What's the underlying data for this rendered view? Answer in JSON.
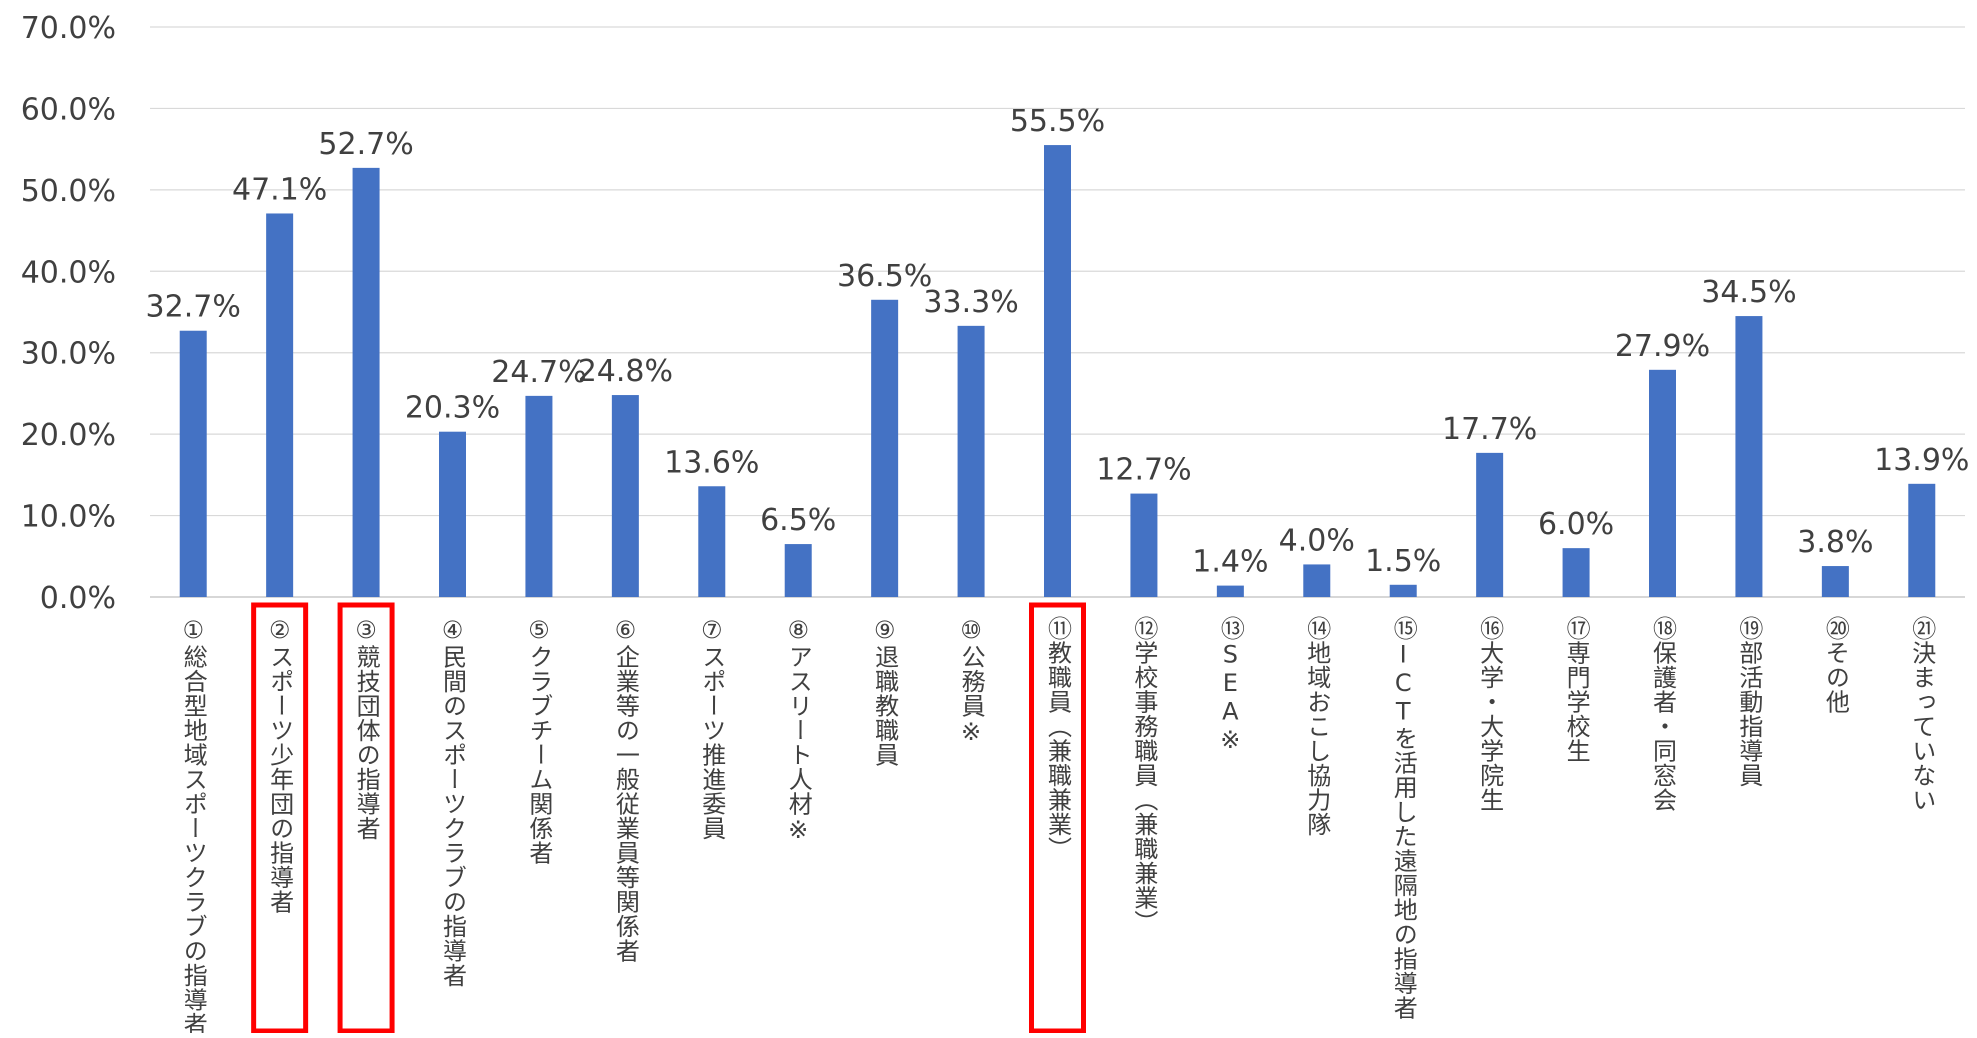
{
  "chart_data": {
    "type": "bar",
    "title": "",
    "xlabel": "",
    "ylabel": "",
    "ylim": [
      0,
      70
    ],
    "yticks": [
      "0.0%",
      "10.0%",
      "20.0%",
      "30.0%",
      "40.0%",
      "50.0%",
      "60.0%",
      "70.0%"
    ],
    "grid": true,
    "legend": "none",
    "bar_color": "#4472C4",
    "highlight_color": "#FF0000",
    "categories": [
      "①総合型地域スポーツクラブの指導者",
      "②スポーツ少年団の指導者",
      "③競技団体の指導者",
      "④民間のスポーツクラブの指導者",
      "⑤クラブチーム関係者",
      "⑥企業等の一般従業員等関係者",
      "⑦スポーツ推進委員",
      "⑧アスリート人材※",
      "⑨退職教職員",
      "⑩公務員※",
      "⑪教職員（兼職兼業）",
      "⑫学校事務職員（兼職兼業）",
      "⑬SEA※",
      "⑭地域おこし協力隊",
      "⑮ICTを活用した遠隔地の指導者",
      "⑯大学・大学院生",
      "⑰専門学校生",
      "⑱保護者・同窓会",
      "⑲部活動指導員",
      "⑳その他",
      "㉑決まっていない"
    ],
    "values": [
      32.7,
      47.1,
      52.7,
      20.3,
      24.7,
      24.8,
      13.6,
      6.5,
      36.5,
      33.3,
      55.5,
      12.7,
      1.4,
      4.0,
      1.5,
      17.7,
      6.0,
      27.9,
      34.5,
      3.8,
      13.9
    ],
    "data_labels": [
      "32.7%",
      "47.1%",
      "52.7%",
      "20.3%",
      "24.7%",
      "24.8%",
      "13.6%",
      "6.5%",
      "36.5%",
      "33.3%",
      "55.5%",
      "12.7%",
      "1.4%",
      "4.0%",
      "1.5%",
      "17.7%",
      "6.0%",
      "27.9%",
      "34.5%",
      "3.8%",
      "13.9%"
    ],
    "highlighted": [
      1,
      2,
      10
    ]
  }
}
